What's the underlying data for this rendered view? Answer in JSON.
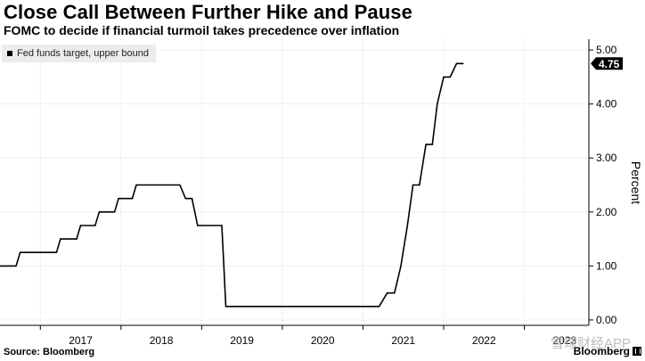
{
  "header": {
    "title": "Close Call Between Further Hike and Pause",
    "subtitle": "FOMC to decide if financial turmoil takes precedence over inflation"
  },
  "footer": {
    "source": "Source: Bloomberg",
    "logo": "Bloomberg",
    "watermark": "雪球财经APP"
  },
  "chart_data": {
    "type": "line",
    "title": "Close Call Between Further Hike and Pause",
    "subtitle": "FOMC to decide if financial turmoil takes precedence over inflation",
    "xlabel": "",
    "ylabel": "Percent",
    "xlim": [
      2016.0,
      2023.3
    ],
    "ylim": [
      -0.1,
      5.2
    ],
    "y_ticks": [
      0,
      1,
      2,
      3,
      4,
      5
    ],
    "y_tick_labels": [
      "0.00",
      "1.00",
      "2.00",
      "3.00",
      "4.00",
      "5.00"
    ],
    "x_ticks": [
      2017.0,
      2018.0,
      2019.0,
      2020.0,
      2021.0,
      2022.0,
      2023.0
    ],
    "x_tick_labels": [
      "2017",
      "2018",
      "2019",
      "2020",
      "2021",
      "2022",
      "2023"
    ],
    "grid": true,
    "legend": [
      "Fed funds target, upper bound"
    ],
    "legend_position": "top-left",
    "last_value_label": "4.75",
    "series": [
      {
        "name": "Fed funds target, upper bound",
        "points": [
          [
            2016.0,
            1.0
          ],
          [
            2016.2,
            1.0
          ],
          [
            2016.25,
            1.25
          ],
          [
            2016.7,
            1.25
          ],
          [
            2016.75,
            1.5
          ],
          [
            2016.95,
            1.5
          ],
          [
            2017.0,
            1.75
          ],
          [
            2017.18,
            1.75
          ],
          [
            2017.23,
            2.0
          ],
          [
            2017.42,
            2.0
          ],
          [
            2017.47,
            2.25
          ],
          [
            2017.64,
            2.25
          ],
          [
            2017.69,
            2.5
          ],
          [
            2018.23,
            2.5
          ],
          [
            2018.3,
            2.25
          ],
          [
            2018.38,
            2.25
          ],
          [
            2018.45,
            1.75
          ],
          [
            2018.75,
            1.75
          ],
          [
            2018.8,
            0.25
          ],
          [
            2020.7,
            0.25
          ],
          [
            2020.8,
            0.5
          ],
          [
            2020.89,
            0.5
          ],
          [
            2020.97,
            1.0
          ],
          [
            2021.05,
            1.75
          ],
          [
            2021.12,
            2.5
          ],
          [
            2021.2,
            2.5
          ],
          [
            2021.28,
            3.25
          ],
          [
            2021.36,
            3.25
          ],
          [
            2021.42,
            4.0
          ],
          [
            2021.5,
            4.5
          ],
          [
            2021.58,
            4.5
          ],
          [
            2021.66,
            4.75
          ],
          [
            2021.74,
            4.75
          ]
        ]
      }
    ]
  }
}
